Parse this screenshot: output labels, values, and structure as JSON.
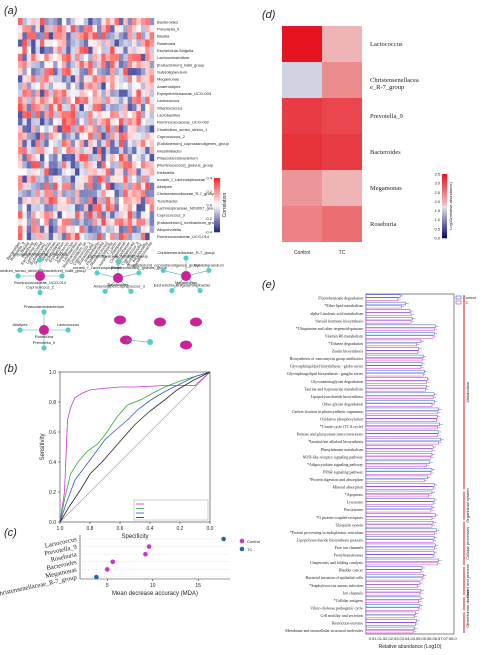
{
  "panels": {
    "a": "(a)",
    "b": "(b)",
    "c": "(c)",
    "d": "(d)",
    "e": "(e)"
  },
  "chart_data": [
    {
      "panel": "a",
      "type": "heatmap",
      "rows": [
        "Bacteroides",
        "Prevotella_9",
        "Blautia",
        "Roseburia",
        "Escherichia-Shigella",
        "Lachnoclostridium",
        "[Eubacterium]_hallii_group",
        "Subdoligranulum",
        "Megamonas",
        "Anaerostipes",
        "Erysipelotrichaceae_UCG-003",
        "Lactococcus",
        "Streptococcus",
        "Lactobacillus",
        "Ruminococcaceae_UCG-002",
        "Clostridium_sensu_stricto_1",
        "Coprococcus_2",
        "[Eubacterium]_coprostanoligenes_group",
        "Intestinibacter",
        "Phascolarctobacterium",
        "[Ruminococcus]_gnavus_group",
        "Klebsiella",
        "norank_f_Lachnospiraceae",
        "Alistipes",
        "Christensenellaceae_R-7_group",
        "Turicibacter",
        "Lachnospiraceae_ND3007_group",
        "Coprococcus_3",
        "[Eubacterium]_ruminantium_group",
        "Alloprevotella",
        "Ruminococcaceae_UCG-014"
      ],
      "colorbar_label": "Correlation",
      "colorbar_ticks": [
        "0.4",
        "0.2",
        "0.0",
        "-0.2",
        "-0.4"
      ],
      "colorbar_range": [
        -0.4,
        0.4
      ]
    },
    {
      "panel": "b",
      "type": "line",
      "xlabel": "Specificity",
      "ylabel": "Sensitivity",
      "xlim": [
        1.0,
        0.0
      ],
      "ylim": [
        0.0,
        1.0
      ],
      "xticks": [
        "1.0",
        "0.8",
        "0.6",
        "0.4",
        "0.2",
        "0.0"
      ],
      "yticks": [
        "0.0",
        "0.2",
        "0.4",
        "0.6",
        "0.8",
        "1.0"
      ],
      "series": [
        {
          "color": "#cc33cc",
          "x": [
            1.0,
            0.97,
            0.95,
            0.93,
            0.9,
            0.85,
            0.8,
            0.72,
            0.6,
            0.5,
            0.3,
            0.1,
            0.0
          ],
          "y": [
            0.0,
            0.2,
            0.68,
            0.76,
            0.83,
            0.86,
            0.88,
            0.89,
            0.9,
            0.9,
            0.91,
            0.91,
            1.0
          ]
        },
        {
          "color": "#33aa33",
          "x": [
            1.0,
            0.97,
            0.93,
            0.88,
            0.82,
            0.75,
            0.7,
            0.62,
            0.55,
            0.45,
            0.38,
            0.3,
            0.2,
            0.1,
            0.0
          ],
          "y": [
            0.0,
            0.15,
            0.32,
            0.4,
            0.47,
            0.52,
            0.58,
            0.7,
            0.78,
            0.82,
            0.86,
            0.9,
            0.94,
            0.97,
            1.0
          ]
        },
        {
          "color": "#3355cc",
          "x": [
            1.0,
            0.96,
            0.9,
            0.84,
            0.78,
            0.7,
            0.62,
            0.55,
            0.48,
            0.4,
            0.3,
            0.2,
            0.1,
            0.0
          ],
          "y": [
            0.0,
            0.12,
            0.28,
            0.36,
            0.44,
            0.55,
            0.62,
            0.68,
            0.75,
            0.81,
            0.87,
            0.92,
            0.97,
            1.0
          ]
        },
        {
          "color": "#222222",
          "x": [
            1.0,
            0.94,
            0.86,
            0.8,
            0.72,
            0.65,
            0.58,
            0.5,
            0.4,
            0.32,
            0.22,
            0.12,
            0.0
          ],
          "y": [
            0.0,
            0.1,
            0.22,
            0.32,
            0.4,
            0.48,
            0.56,
            0.65,
            0.74,
            0.8,
            0.88,
            0.94,
            1.0
          ]
        }
      ]
    },
    {
      "panel": "c",
      "type": "scatter",
      "xlabel": "Mean decrease accuracy (MDA)",
      "xticks": [
        "5",
        "10",
        "15"
      ],
      "xlim": [
        2,
        18.5
      ],
      "categories": [
        "Lactococcus",
        "Prevotella_9",
        "Roseburia",
        "Bacteroides",
        "Megamonas",
        "Christensenellaceae_R-7_group"
      ],
      "values": [
        17.8,
        9.6,
        9.2,
        5.6,
        5.0,
        3.8
      ],
      "point_colors": [
        "#2266aa",
        "#cc33cc",
        "#cc33cc",
        "#cc33cc",
        "#cc33cc",
        "#2266aa"
      ],
      "legend": [
        "Control",
        "TC"
      ],
      "legend_colors": [
        "#cc33cc",
        "#2266aa"
      ]
    },
    {
      "panel": "d",
      "type": "heatmap",
      "rows": [
        "Lactococcus",
        "Christensenellaceae_R-7_group",
        "Prevotella_9",
        "Bacteroides",
        "Megamonas",
        "Roseburia"
      ],
      "columns": [
        "Control",
        "TC"
      ],
      "values": [
        [
          3.6,
          2.0
        ],
        [
          1.6,
          2.4
        ],
        [
          3.2,
          3.1
        ],
        [
          3.3,
          3.2
        ],
        [
          2.3,
          2.0
        ],
        [
          2.5,
          2.7
        ]
      ],
      "colorbar_label": "Log10(relative abundance)",
      "colorbar_ticks": [
        "3.5",
        "3.0",
        "2.5",
        "2.0",
        "1.5",
        "1.0",
        "0.5",
        "0.0"
      ],
      "colorbar_range": [
        0.0,
        3.6
      ]
    },
    {
      "panel": "e",
      "type": "bar",
      "xlabel": "Relative abundance (Log10)",
      "xticks": [
        "0.5",
        "1.0",
        "1.5",
        "2.0",
        "2.5",
        "3.0",
        "3.5",
        "4.0",
        "4.5",
        "5.0",
        "5.5",
        "6.0",
        "6.5",
        "7.0",
        "7.5",
        "8.0"
      ],
      "xlim": [
        0.0,
        8.0
      ],
      "legend": [
        "Control",
        "TC"
      ],
      "legend_colors": [
        "#3355cc",
        "#cc33cc"
      ],
      "categories": [
        "Fluorobenzoate degradation",
        "*Ether lipid metabolism",
        "alpha-Linolenic acid metabolism",
        "Steroid hormone biosynthesis",
        "*Ubiquinone and other terpenoid-quinone",
        "Vitamin B6 metabolism",
        "*Toluene degradation",
        "Zeatin biosynthesis",
        "Biosynthesis of vancomycin group antibiotics",
        "Glycosphingolipid biosynthesis - globo series",
        "Glycosphingolipid biosynthesis - ganglio series",
        "Glycosaminoglycan degradation",
        "Taurine and hypotaurine metabolism",
        "Lipopolysaccharide biosynthesis",
        "Other glycan degradation",
        "Carbon fixation in photosynthetic organisms",
        "Oxidative phosphorylation",
        "*Citrate cycle (TCA cycle)",
        "Pentose and glucuronate interconversions",
        "*Inositol/ine alkaloid biosynthesis",
        "Phenylalanine metabolism",
        "NOD-like receptor signaling pathway",
        "*Adipocytokine signaling pathway",
        "PPAR signaling pathway",
        "*Protein digestion and absorption",
        "Mineral absorption",
        "*Apoptosis",
        "Lysosome",
        "Peroxisome",
        "*G protein-coupled receptors",
        "Ubiquitin system",
        "*Protein processing in endoplasmic reticulum",
        "Lipopolysaccharide biosynthesis proteins",
        "Pore ion channels",
        "Prenyltransferases",
        "Chaperones and folding catalysts",
        "Bladder cancer",
        "Bacterial invasion of epithelial cells",
        "*Staphylococcus aureus infection",
        "Ion channels",
        "*Cellular antigens",
        "Vibrio cholerae pathogenic cycle",
        "Cell motility and secretion",
        "Restriction enzyme",
        "Membrane and intracellular structural molecules"
      ],
      "series": [
        {
          "name": "Control",
          "values": [
            3.1,
            3.6,
            4.0,
            4.2,
            6.3,
            6.2,
            5.0,
            4.8,
            5.2,
            5.1,
            5.3,
            5.6,
            5.5,
            6.2,
            6.2,
            6.6,
            6.5,
            6.7,
            6.6,
            6.8,
            6.1,
            6.0,
            5.8,
            6.0,
            5.6,
            6.2,
            6.0,
            6.2,
            6.0,
            6.3,
            6.1,
            6.4,
            6.2,
            6.3,
            6.2,
            6.6,
            5.1,
            5.2,
            4.9,
            5.0,
            5.0,
            4.9,
            4.5,
            4.6,
            4.4
          ]
        },
        {
          "name": "TC",
          "values": [
            2.9,
            3.2,
            4.1,
            4.1,
            6.2,
            6.1,
            4.6,
            4.7,
            5.1,
            5.0,
            5.2,
            5.5,
            5.4,
            6.1,
            6.0,
            6.5,
            6.4,
            6.5,
            6.5,
            6.6,
            6.0,
            5.9,
            5.5,
            5.9,
            5.3,
            6.1,
            5.7,
            6.1,
            5.9,
            6.0,
            6.0,
            6.2,
            6.1,
            6.2,
            6.1,
            6.5,
            5.0,
            5.1,
            4.7,
            4.9,
            4.8,
            4.8,
            4.4,
            4.5,
            4.3
          ]
        }
      ],
      "groups": [
        "Metabolism",
        "Organismal system",
        "Cellular processes",
        "Genet and process",
        "Human disease",
        "Other"
      ]
    }
  ],
  "network": {
    "nodes_group1": [
      "Ruminococcaceae_UCG-014",
      "Erysipelotrichaceae_UCG-003",
      "[Eubacterium]_hallii_group",
      "Coprococcus_2",
      "Clostridium_sensu_stricto_1"
    ],
    "nodes_group2": [
      "Lachnospiraceae_ND3007_group",
      "Bacteroides",
      "[Ruminococcus]_gnavus_group",
      "Coprococcus_3",
      "Anaerostipes",
      "norank_f_Lachnospiraceae"
    ],
    "nodes_group3": [
      "Christensenellaceae_R-7_group",
      "Subdoligranulum",
      "Turicibacter",
      "Megamonas",
      "Escherichia-Shigella",
      "[Eubacterium]_coprostanoligenes_group"
    ],
    "nodes_group4": [
      "Phascolarctobacterium",
      "Lactococcus",
      "Roseburia",
      "Prevotella_9",
      "Alistipes"
    ]
  }
}
